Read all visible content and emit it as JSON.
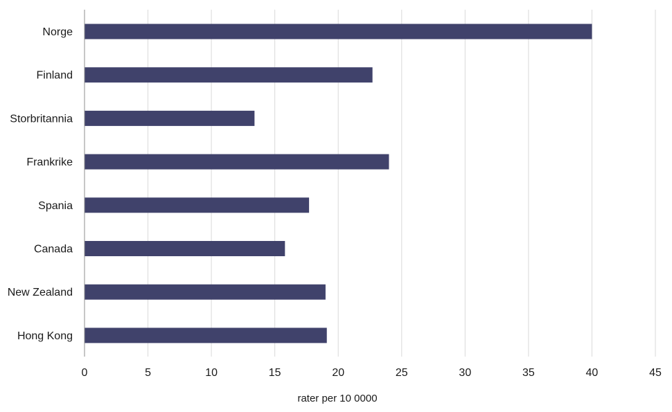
{
  "chart_data": {
    "type": "bar",
    "orientation": "horizontal",
    "categories": [
      "Norge",
      "Finland",
      "Storbritannia",
      "Frankrike",
      "Spania",
      "Canada",
      "New Zealand",
      "Hong Kong"
    ],
    "values": [
      40.0,
      22.7,
      13.4,
      24.0,
      17.7,
      15.8,
      19.0,
      19.1
    ],
    "xlabel": "rater per 10 0000",
    "ylabel": "",
    "title": "",
    "xlim": [
      0,
      45
    ],
    "xticks": [
      0,
      5,
      10,
      15,
      20,
      25,
      30,
      35,
      40,
      45
    ],
    "grid": "vertical",
    "legend": "none",
    "bar_color": "#40426b",
    "grid_color": "#d9d9d9"
  }
}
